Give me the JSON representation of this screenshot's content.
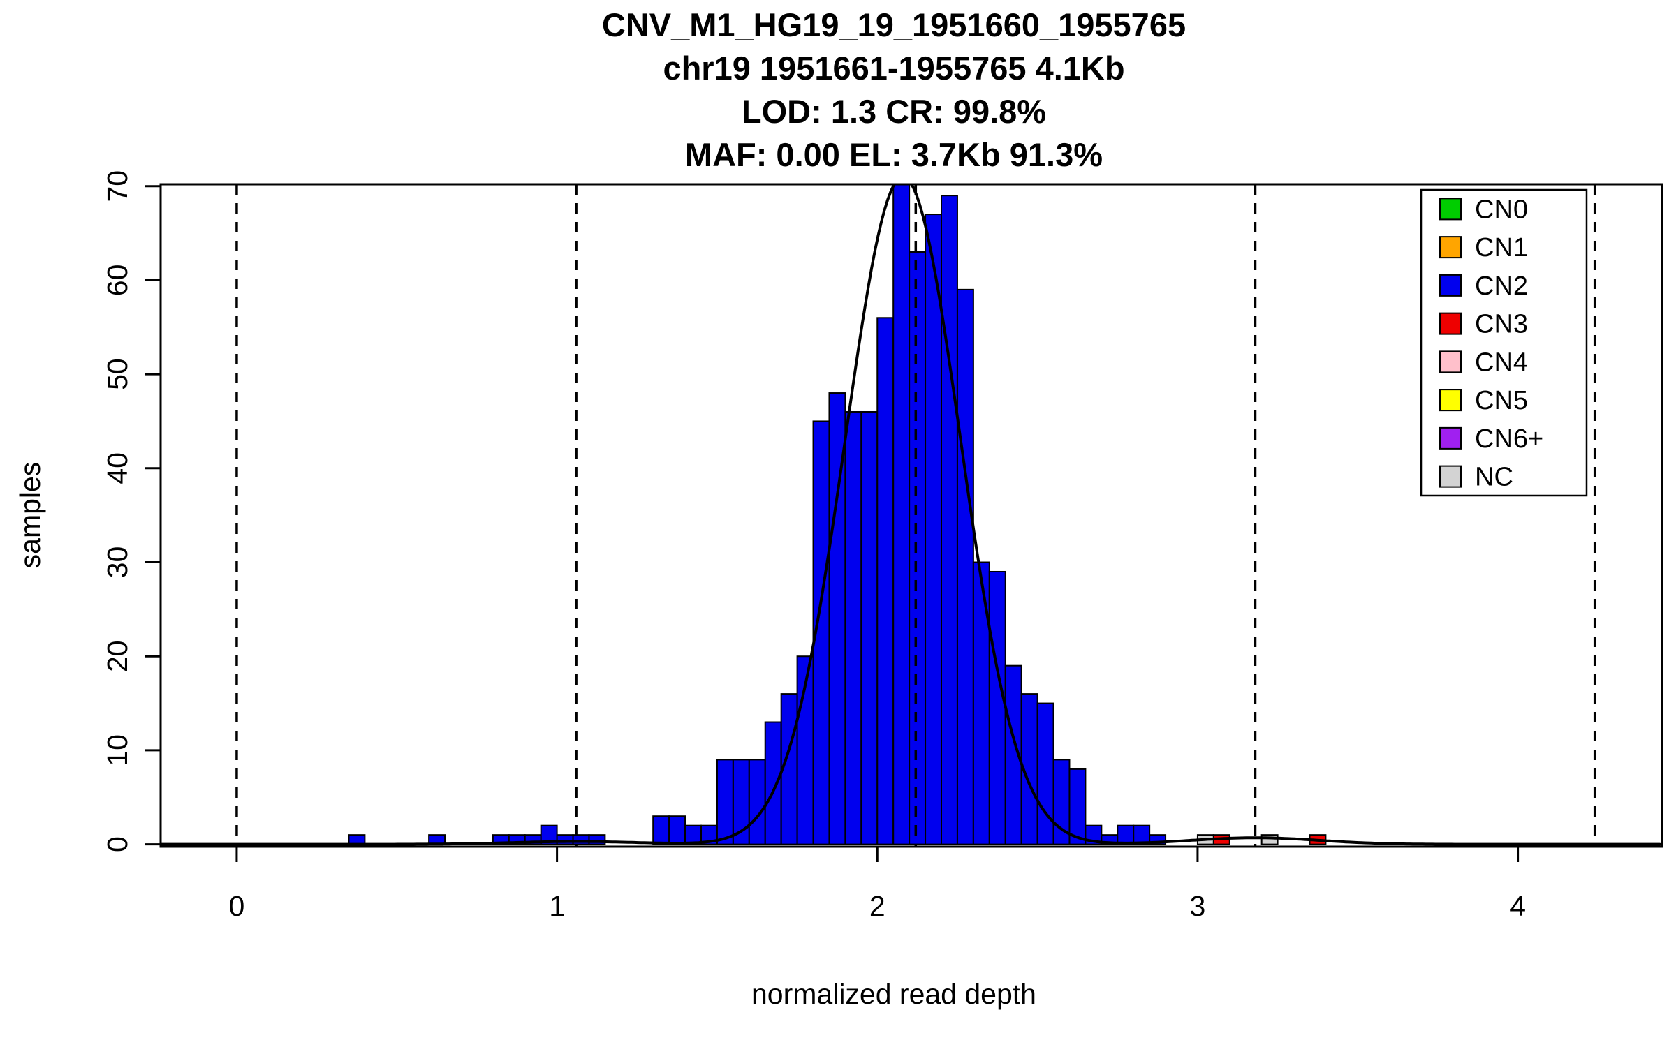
{
  "title": {
    "line1": "CNV_M1_HG19_19_1951660_1955765",
    "line2": "chr19 1951661-1955765 4.1Kb",
    "line3": "LOD: 1.3 CR: 99.8%",
    "line4": "MAF: 0.00 EL: 3.7Kb 91.3%"
  },
  "axes": {
    "x_label": "normalized read depth",
    "y_label": "samples",
    "x_ticks": [
      0,
      1,
      2,
      3,
      4
    ],
    "y_ticks": [
      0,
      10,
      20,
      30,
      40,
      50,
      60,
      70
    ],
    "x_range": [
      -0.2375,
      4.45
    ],
    "y_range": [
      -0.25,
      70.2
    ]
  },
  "legend": {
    "position": "top-right",
    "entries": [
      {
        "label": "CN0",
        "color": "#00CD00"
      },
      {
        "label": "CN1",
        "color": "#FFA500"
      },
      {
        "label": "CN2",
        "color": "#0000EE"
      },
      {
        "label": "CN3",
        "color": "#EE0000"
      },
      {
        "label": "CN4",
        "color": "#FFC0CB"
      },
      {
        "label": "CN5",
        "color": "#FFFF00"
      },
      {
        "label": "CN6+",
        "color": "#A020F0"
      },
      {
        "label": "NC",
        "color": "#D3D3D3"
      }
    ]
  },
  "chart_data": {
    "type": "bar",
    "subtype": "histogram",
    "bin_width": 0.05,
    "xlabel": "normalized read depth",
    "ylabel": "samples",
    "xlim": [
      -0.2375,
      4.45
    ],
    "ylim": [
      0,
      70
    ],
    "grid": false,
    "series": [
      {
        "name": "CN2",
        "color": "#0000EE",
        "bins": [
          [
            0.35,
            1
          ],
          [
            0.6,
            1
          ],
          [
            0.8,
            1
          ],
          [
            0.85,
            1
          ],
          [
            0.9,
            1
          ],
          [
            0.95,
            2
          ],
          [
            1.0,
            1
          ],
          [
            1.05,
            1
          ],
          [
            1.1,
            1
          ],
          [
            1.3,
            3
          ],
          [
            1.35,
            3
          ],
          [
            1.4,
            2
          ],
          [
            1.45,
            2
          ],
          [
            1.5,
            9
          ],
          [
            1.55,
            9
          ],
          [
            1.6,
            9
          ],
          [
            1.65,
            13
          ],
          [
            1.7,
            16
          ],
          [
            1.75,
            20
          ],
          [
            1.8,
            45
          ],
          [
            1.85,
            48
          ],
          [
            1.9,
            46
          ],
          [
            1.95,
            46
          ],
          [
            2.0,
            56
          ],
          [
            2.05,
            72
          ],
          [
            2.1,
            63
          ],
          [
            2.15,
            67
          ],
          [
            2.2,
            69
          ],
          [
            2.25,
            59
          ],
          [
            2.3,
            30
          ],
          [
            2.35,
            29
          ],
          [
            2.4,
            19
          ],
          [
            2.45,
            16
          ],
          [
            2.5,
            15
          ],
          [
            2.55,
            9
          ],
          [
            2.6,
            8
          ],
          [
            2.65,
            2
          ],
          [
            2.7,
            1
          ],
          [
            2.75,
            2
          ],
          [
            2.8,
            2
          ],
          [
            2.85,
            1
          ]
        ]
      },
      {
        "name": "NC",
        "color": "#D3D3D3",
        "bins": [
          [
            3.0,
            1
          ],
          [
            3.2,
            1
          ]
        ]
      },
      {
        "name": "CN3",
        "color": "#EE0000",
        "bins": [
          [
            3.05,
            1
          ],
          [
            3.35,
            1
          ]
        ]
      }
    ],
    "fit_curve": {
      "type": "gaussian-mixture",
      "color": "#000000",
      "components": [
        {
          "amplitude": 71.0,
          "mean": 2.08,
          "sd": 0.18
        },
        {
          "amplitude": 0.7,
          "mean": 3.18,
          "sd": 0.2
        },
        {
          "amplitude": 0.3,
          "mean": 1.06,
          "sd": 0.2
        }
      ]
    },
    "dashed_lines_x": [
      0,
      1.06,
      2.12,
      3.18,
      4.24
    ],
    "dashed_line_style": {
      "color": "#000000",
      "pattern": "dashed"
    }
  }
}
